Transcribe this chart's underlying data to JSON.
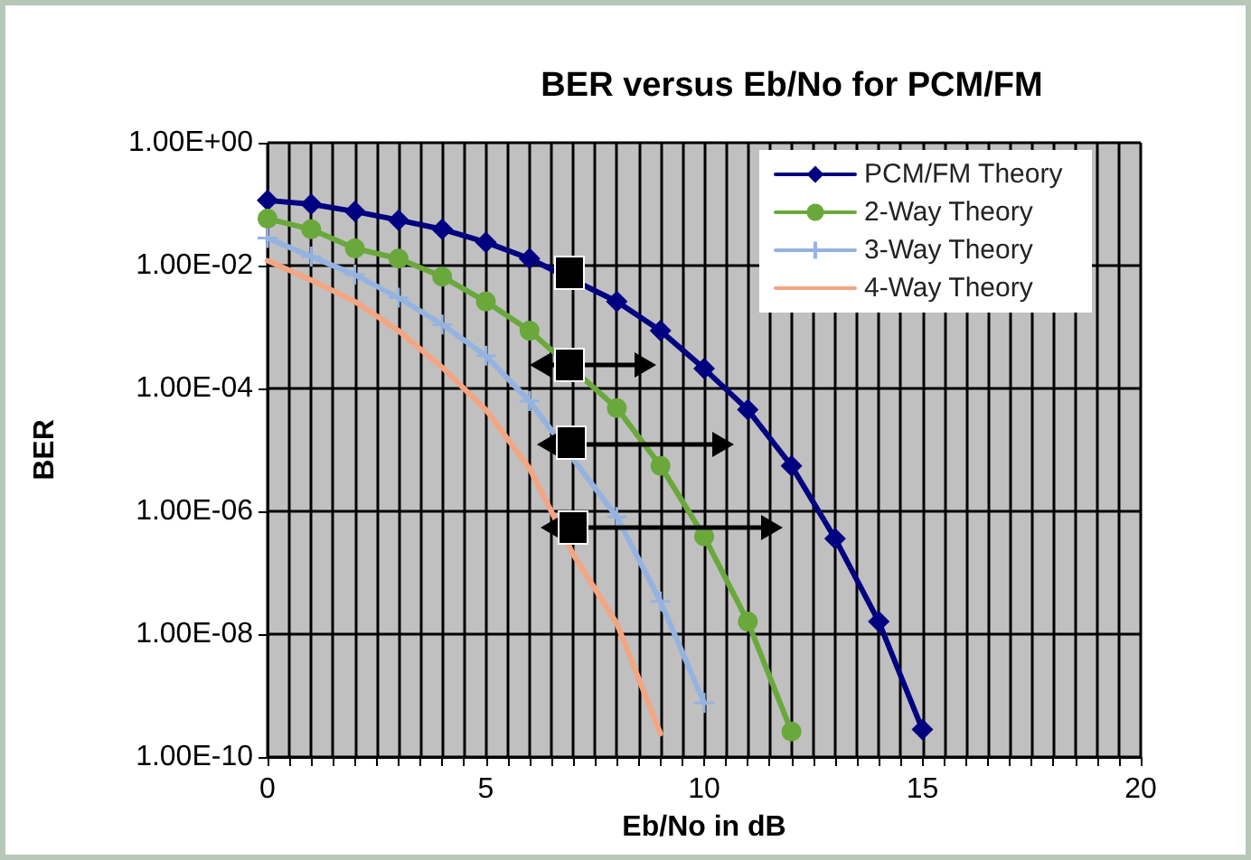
{
  "chart_data": {
    "type": "line",
    "title": "BER versus Eb/No for PCM/FM",
    "xlabel": "Eb/No in dB",
    "ylabel": "BER",
    "log": "y",
    "grid": true,
    "legend": "top right",
    "xlim": [
      0,
      20
    ],
    "xticks": [
      0,
      {
        "value": 0.5,
        "label": null
      },
      {
        "value": 1,
        "label": null
      },
      {
        "value": 1.5,
        "label": null
      },
      {
        "value": 2,
        "label": null
      },
      {
        "value": 2.5,
        "label": null
      },
      {
        "value": 3,
        "label": null
      },
      {
        "value": 3.5,
        "label": null
      },
      {
        "value": 4,
        "label": null
      },
      {
        "value": 4.5,
        "label": null
      },
      5,
      {
        "value": 5.5,
        "label": null
      },
      {
        "value": 6,
        "label": null
      },
      {
        "value": 6.5,
        "label": null
      },
      {
        "value": 7,
        "label": null
      },
      {
        "value": 7.5,
        "label": null
      },
      {
        "value": 8,
        "label": null
      },
      {
        "value": 8.5,
        "label": null
      },
      {
        "value": 9,
        "label": null
      },
      {
        "value": 9.5,
        "label": null
      },
      10,
      {
        "value": 10.5,
        "label": null
      },
      {
        "value": 11,
        "label": null
      },
      {
        "value": 11.5,
        "label": null
      },
      {
        "value": 12,
        "label": null
      },
      {
        "value": 12.5,
        "label": null
      },
      {
        "value": 13,
        "label": null
      },
      {
        "value": 13.5,
        "label": null
      },
      {
        "value": 14,
        "label": null
      },
      {
        "value": 14.5,
        "label": null
      },
      15,
      {
        "value": 15.5,
        "label": null
      },
      {
        "value": 16,
        "label": null
      },
      {
        "value": 16.5,
        "label": null
      },
      {
        "value": 17,
        "label": null
      },
      {
        "value": 17.5,
        "label": null
      },
      {
        "value": 18,
        "label": null
      },
      {
        "value": 18.5,
        "label": null
      },
      {
        "value": 19,
        "label": null
      },
      {
        "value": 19.5,
        "label": null
      },
      20
    ],
    "ylim": [
      1e-10,
      1
    ],
    "yticks": [
      {
        "value": 1e-10,
        "label": "1.00E-10"
      },
      {
        "value": 1e-08,
        "label": "1.00E-08"
      },
      {
        "value": 1e-06,
        "label": "1.00E-06"
      },
      {
        "value": 0.0001,
        "label": "1.00E-04"
      },
      {
        "value": 0.01,
        "label": "1.00E-02"
      },
      {
        "value": 1,
        "label": "1.00E+00"
      }
    ],
    "series": [
      {
        "name": "PCM/FM Theory",
        "color": "#000080",
        "marker": "diamond",
        "x": [
          0,
          1,
          2,
          3,
          4,
          5,
          6,
          7,
          8,
          9,
          10,
          11,
          12,
          13,
          14,
          15
        ],
        "values": [
          0.115,
          0.1,
          0.076,
          0.055,
          0.039,
          0.024,
          0.013,
          null,
          0.0026,
          0.00087,
          0.00021,
          4.5e-05,
          5.5e-06,
          3.6e-07,
          1.6e-08,
          2.8e-10
        ]
      },
      {
        "name": "2-Way Theory",
        "color": "#6aa83c",
        "marker": "circle",
        "x": [
          0,
          1,
          2,
          3,
          4,
          5,
          6,
          7,
          8,
          9,
          10,
          11,
          12
        ],
        "values": [
          0.058,
          0.039,
          0.019,
          0.013,
          0.0066,
          0.0026,
          0.00087,
          null,
          4.8e-05,
          5.5e-06,
          3.9e-07,
          1.6e-08,
          2.6e-10
        ]
      },
      {
        "name": "3-Way Theory",
        "color": "#95b3e0",
        "marker": "cross",
        "x": [
          0,
          1,
          2,
          3,
          4,
          5,
          6,
          7,
          8,
          9,
          10
        ],
        "values": [
          0.028,
          0.014,
          0.0071,
          0.003,
          0.0011,
          0.00034,
          6.2e-05,
          null,
          8.1e-07,
          3.4e-08,
          7.6e-10
        ]
      },
      {
        "name": "4-Way Theory",
        "color": "#f4a582",
        "marker": "none",
        "x": [
          0,
          1,
          2,
          3,
          4,
          5,
          6,
          7,
          8,
          9
        ],
        "values": [
          0.012,
          0.0058,
          0.0026,
          0.00087,
          0.00022,
          4.5e-05,
          5e-06,
          2e-07,
          1.5e-08,
          2.4e-10
        ]
      }
    ]
  }
}
